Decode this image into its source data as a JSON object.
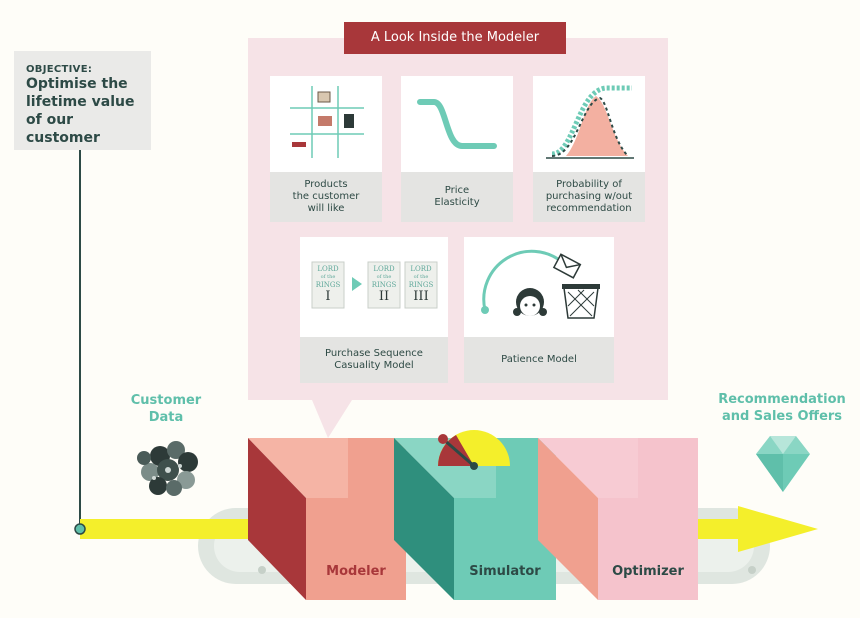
{
  "title": "A Look Inside the Modeler",
  "objective": {
    "kicker": "OBJECTIVE:",
    "lines": [
      "Optimise the",
      "lifetime value",
      "of our customer"
    ]
  },
  "input": {
    "lines": [
      "Customer",
      "Data"
    ]
  },
  "output": {
    "lines": [
      "Recommendation",
      "and Sales Offers"
    ]
  },
  "models": [
    {
      "id": "products",
      "lines": [
        "Products",
        "the customer",
        "will like"
      ]
    },
    {
      "id": "price",
      "lines": [
        "Price",
        "Elasticity"
      ]
    },
    {
      "id": "probability",
      "lines": [
        "Probability of",
        "purchasing w/out",
        "recommendation"
      ]
    },
    {
      "id": "sequence",
      "lines": [
        "Purchase Sequence",
        "Casuality Model"
      ]
    },
    {
      "id": "patience",
      "lines": [
        "Patience Model"
      ]
    }
  ],
  "books": {
    "line1": "LORD",
    "line2": "of the",
    "line3": "RINGS",
    "volumes": [
      "I",
      "II",
      "III"
    ]
  },
  "machines": [
    {
      "id": "modeler",
      "label": "Modeler"
    },
    {
      "id": "simulator",
      "label": "Simulator"
    },
    {
      "id": "optimizer",
      "label": "Optimizer"
    }
  ],
  "colors": {
    "banner": "#a8373a",
    "panel": "#f6e3e7",
    "card_caption": "#e4e4e2",
    "teal": "#6ecbb6",
    "salmon": "#f0a08f",
    "pink": "#f5c3cc",
    "arrow": "#f4ef2b",
    "belt": "#dfe6e0",
    "objective_box": "#eaeae8"
  }
}
